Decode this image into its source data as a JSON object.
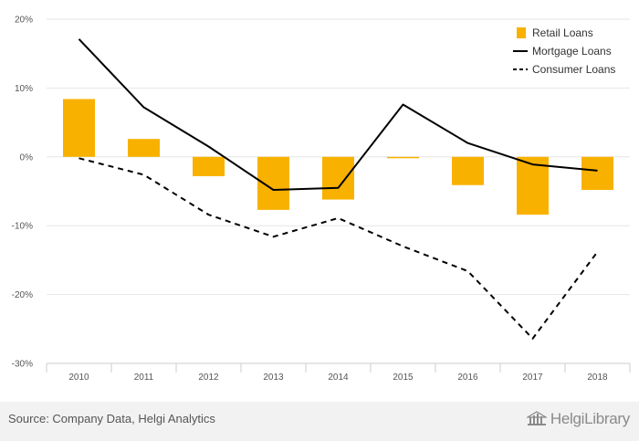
{
  "chart_data": {
    "type": "bar",
    "categories": [
      "2010",
      "2011",
      "2012",
      "2013",
      "2014",
      "2015",
      "2016",
      "2017",
      "2018"
    ],
    "ylim": [
      -30,
      20
    ],
    "yticks": [
      20,
      10,
      0,
      -10,
      -20,
      -30
    ],
    "ytick_labels": [
      "20%",
      "10%",
      "0%",
      "-10%",
      "-20%",
      "-30%"
    ],
    "grid": true,
    "legend_position": "top-right",
    "series": [
      {
        "name": "Retail Loans",
        "kind": "bar",
        "color": "#f9b100",
        "values": [
          8.4,
          2.6,
          -2.8,
          -7.7,
          -6.2,
          -0.2,
          -4.1,
          -8.4,
          -4.8
        ]
      },
      {
        "name": "Mortgage Loans",
        "kind": "line",
        "style": "solid",
        "color": "#000000",
        "values": [
          17.1,
          7.2,
          1.5,
          -4.8,
          -4.5,
          7.6,
          2.0,
          -1.1,
          -2.0
        ]
      },
      {
        "name": "Consumer Loans",
        "kind": "line",
        "style": "dashed",
        "color": "#000000",
        "values": [
          -0.2,
          -2.6,
          -8.4,
          -11.6,
          -8.9,
          -13.0,
          -16.6,
          -26.4,
          -13.8
        ]
      }
    ]
  },
  "footer": {
    "source": "Source: Company Data, Helgi Analytics",
    "brand": "HelgiLibrary",
    "brand_icon": "helgi-building-icon"
  }
}
